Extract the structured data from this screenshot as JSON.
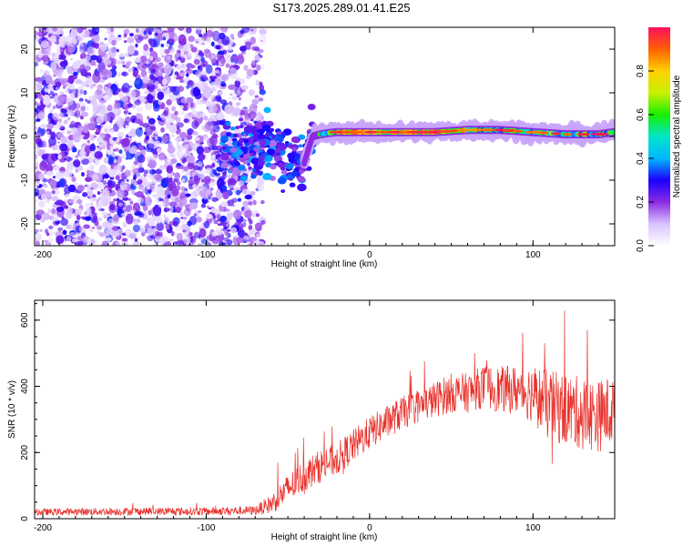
{
  "title": "S173.2025.289.01.41.E25",
  "chart_data": [
    {
      "type": "heatmap",
      "xlabel": "Height of straight line (km)",
      "ylabel": "Frequency (Hz)",
      "xlim": [
        -205,
        150
      ],
      "ylim": [
        -25,
        25
      ],
      "xticks": [
        -200,
        -100,
        0,
        100
      ],
      "yticks": [
        -20,
        -10,
        0,
        10,
        20
      ],
      "colorbar": {
        "label": "Normalized spectral amplitude",
        "range": [
          0,
          1
        ],
        "ticks": [
          "0.0",
          "0.2",
          "0.4",
          "0.6",
          "0.8"
        ],
        "colormap": [
          "#ffffff",
          "#d9c2ff",
          "#8a2be2",
          "#1b00ff",
          "#00b8ff",
          "#00e5c8",
          "#19f000",
          "#c8f000",
          "#ffd000",
          "#ff6000",
          "#ff1060"
        ]
      },
      "signal_track": {
        "x": [
          -60,
          -50,
          -40,
          -35,
          -30,
          -25,
          -20,
          0,
          20,
          40,
          60,
          80,
          100,
          120,
          140,
          150
        ],
        "y": [
          -3,
          -5,
          -6,
          0,
          0.5,
          0.8,
          1,
          1,
          1,
          1,
          1.5,
          1.5,
          1,
          0.5,
          0.5,
          1
        ]
      },
      "noise_region": {
        "x_range": [
          -205,
          -65
        ],
        "y_range": [
          -25,
          25
        ]
      }
    },
    {
      "type": "line",
      "xlabel": "Height of straight line (km)",
      "ylabel": "SNR (10 * v/v)",
      "xlim": [
        -205,
        150
      ],
      "ylim": [
        0,
        660
      ],
      "xticks": [
        -200,
        -100,
        0,
        100
      ],
      "yticks": [
        0,
        200,
        400,
        600
      ],
      "series": [
        {
          "color": "#e8302a",
          "envelope_x": [
            -205,
            -150,
            -100,
            -70,
            -60,
            -50,
            -40,
            -30,
            -20,
            -10,
            0,
            10,
            20,
            30,
            40,
            50,
            60,
            70,
            80,
            90,
            100,
            110,
            120,
            130,
            140,
            150
          ],
          "envelope_mean": [
            20,
            22,
            22,
            25,
            45,
            90,
            130,
            160,
            180,
            220,
            260,
            290,
            320,
            340,
            360,
            380,
            380,
            400,
            390,
            390,
            380,
            340,
            330,
            320,
            310,
            330
          ],
          "envelope_spread": [
            10,
            12,
            12,
            14,
            30,
            45,
            50,
            50,
            50,
            50,
            50,
            50,
            50,
            50,
            55,
            60,
            60,
            65,
            70,
            75,
            90,
            110,
            110,
            110,
            110,
            110
          ]
        }
      ]
    }
  ]
}
